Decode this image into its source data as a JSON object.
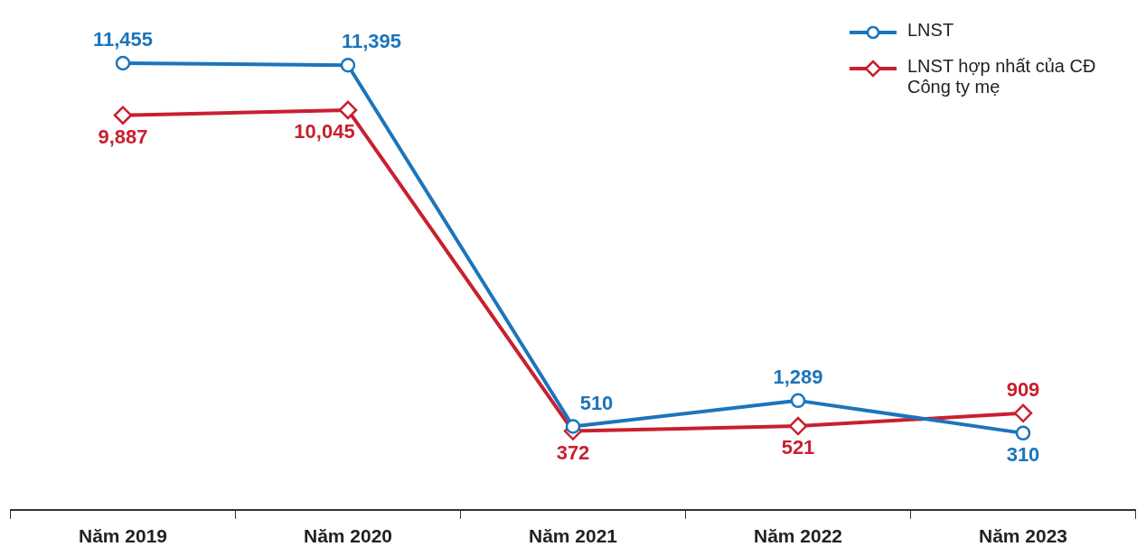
{
  "chart_data": {
    "type": "line",
    "categories": [
      "Năm 2019",
      "Năm 2020",
      "Năm 2021",
      "Năm 2022",
      "Năm 2023"
    ],
    "series": [
      {
        "name": "LNST",
        "color": "#1b75bc",
        "marker": "circle",
        "values": [
          11455,
          11395,
          510,
          1289,
          310
        ],
        "value_labels": [
          "11,455",
          "11,395",
          "510",
          "1,289",
          "310"
        ]
      },
      {
        "name": "LNST hợp nhất của CĐ Công ty mẹ",
        "color": "#c8202f",
        "marker": "diamond",
        "values": [
          9887,
          10045,
          372,
          521,
          909
        ],
        "value_labels": [
          "9,887",
          "10,045",
          "372",
          "521",
          "909"
        ]
      }
    ],
    "legend": "top right",
    "grid": false,
    "line_style": "solid"
  }
}
